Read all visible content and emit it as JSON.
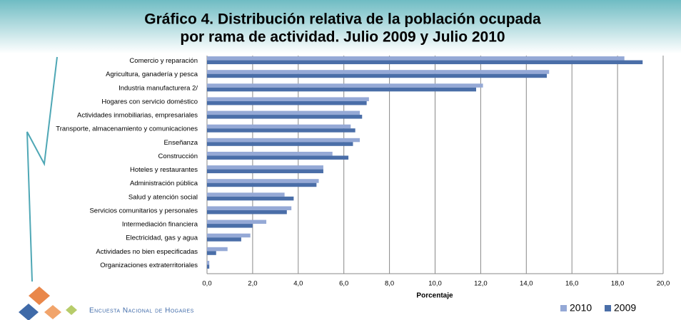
{
  "chart_data": {
    "type": "hbar",
    "title": [
      "Gráfico 4. Distribución relativa de la población ocupada",
      "por rama de actividad. Julio 2009 y Julio 2010"
    ],
    "categories": [
      "Comercio y reparación",
      "Agricultura, ganadería y pesca",
      "Industria manufacturera 2/",
      "Hogares con servicio doméstico",
      "Actividades inmobiliarias, empresariales",
      "Transporte, almacenamiento y comunicaciones",
      "Enseñanza",
      "Construcción",
      "Hoteles y restaurantes",
      "Administración pública",
      "Salud y atención social",
      "Servicios comunitarios y personales",
      "Intermediación financiera",
      "Electricidad, gas y agua",
      "Actividades no bien especificadas",
      "Organizaciones extraterritoriales"
    ],
    "series": [
      {
        "name": "2010",
        "color": "#95a9d6",
        "values": [
          18.3,
          15.0,
          12.1,
          7.1,
          6.7,
          6.3,
          6.7,
          5.5,
          5.1,
          4.9,
          3.4,
          3.7,
          2.6,
          1.9,
          0.9,
          0.1
        ]
      },
      {
        "name": "2009",
        "color": "#4a6ea8",
        "values": [
          19.1,
          14.9,
          11.8,
          7.0,
          6.8,
          6.5,
          6.4,
          6.2,
          5.1,
          4.8,
          3.8,
          3.5,
          2.0,
          1.5,
          0.4,
          0.1
        ]
      }
    ],
    "xlabel": "Porcentaje",
    "xlim": [
      0,
      20
    ],
    "xticks": [
      {
        "value": 0,
        "label": "0,0"
      },
      {
        "value": 2,
        "label": "2,0"
      },
      {
        "value": 4,
        "label": "4,0"
      },
      {
        "value": 6,
        "label": "6,0"
      },
      {
        "value": 8,
        "label": "8,0"
      },
      {
        "value": 10,
        "label": "10,0"
      },
      {
        "value": 12,
        "label": "12,0"
      },
      {
        "value": 14,
        "label": "14,0"
      },
      {
        "value": 16,
        "label": "16,0"
      },
      {
        "value": 18,
        "label": "18,0"
      },
      {
        "value": 20,
        "label": "20,0"
      }
    ],
    "grid": true,
    "legend": "bottom-right"
  },
  "footer": "Encuesta Nacional de Hogares"
}
